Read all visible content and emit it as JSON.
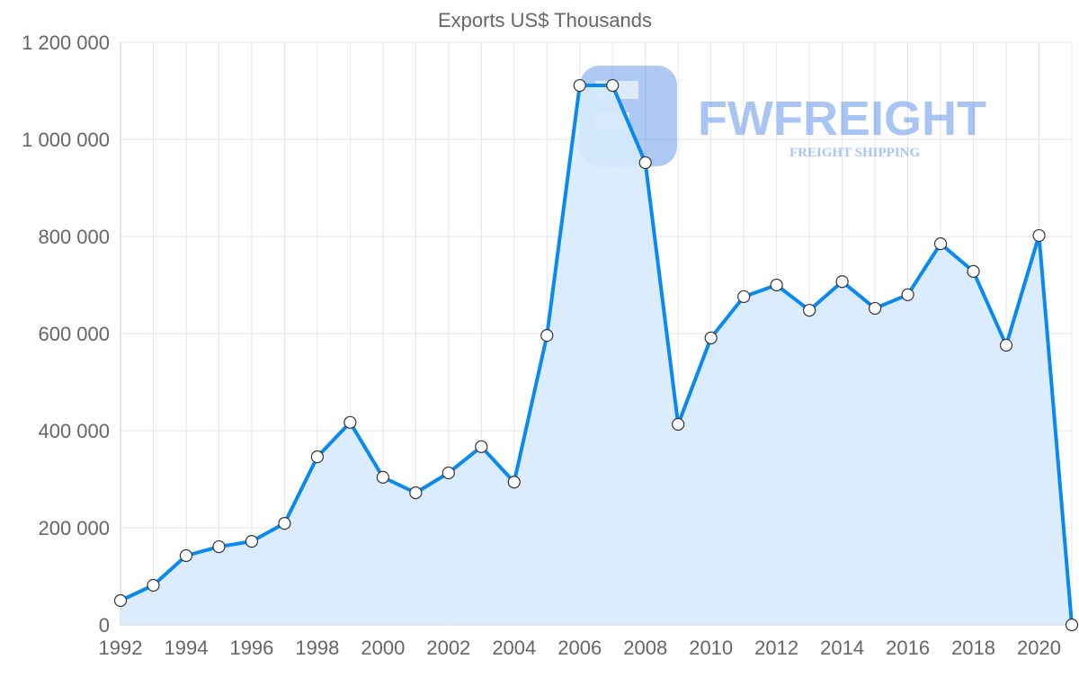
{
  "chart_data": {
    "type": "area",
    "title": "Exports US$ Thousands",
    "xlabel": "",
    "ylabel": "",
    "x": [
      1992,
      1993,
      1994,
      1995,
      1996,
      1997,
      1998,
      1999,
      2000,
      2001,
      2002,
      2003,
      2004,
      2005,
      2006,
      2007,
      2008,
      2009,
      2010,
      2011,
      2012,
      2013,
      2014,
      2015,
      2016,
      2017,
      2018,
      2019,
      2020,
      2021
    ],
    "series": [
      {
        "name": "Exports US$ Thousands",
        "values": [
          50000,
          81500,
          142600,
          161000,
          172000,
          209000,
          346000,
          417000,
          304000,
          272000,
          313000,
          367000,
          294000,
          596000,
          1111000,
          1111000,
          952000,
          413000,
          591000,
          676000,
          700000,
          648000,
          707000,
          652000,
          680000,
          785000,
          728000,
          576000,
          802000,
          0
        ]
      }
    ],
    "ylim": [
      0,
      1200000
    ],
    "xlim": [
      1992,
      2021
    ],
    "yticks": [
      0,
      200000,
      400000,
      600000,
      800000,
      1000000,
      1200000
    ],
    "ytick_labels": [
      "0",
      "200 000",
      "400 000",
      "600 000",
      "800 000",
      "1 000 000",
      "1 200 000"
    ],
    "xticks": [
      1992,
      1994,
      1996,
      1998,
      2000,
      2002,
      2004,
      2006,
      2008,
      2010,
      2012,
      2014,
      2016,
      2018,
      2020
    ],
    "xtick_labels": [
      "1992",
      "1994",
      "1996",
      "1998",
      "2000",
      "2002",
      "2004",
      "2006",
      "2008",
      "2010",
      "2012",
      "2014",
      "2016",
      "2018",
      "2020"
    ],
    "grid": true,
    "legend": "none",
    "colors": {
      "line": "#0a8af0",
      "fill": "#d6eafd",
      "point_fill": "#ffffff",
      "point_stroke": "#333333"
    }
  },
  "watermark": {
    "brand": "FWFREIGHT",
    "tagline": "FREIGHT SHIPPING"
  }
}
